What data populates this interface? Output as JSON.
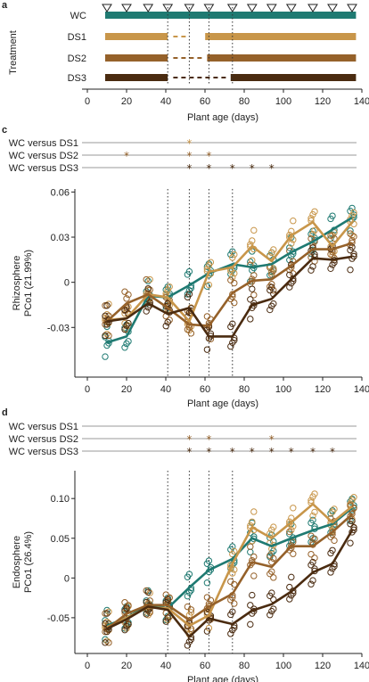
{
  "colors": {
    "WC": "#1f7a72",
    "DS1": "#c8964a",
    "DS2": "#95612a",
    "DS3": "#4a2b10",
    "grid": "#8a8a8a"
  },
  "panel_a": {
    "label": "a",
    "ylabel": "Treatment",
    "xlabel": "Plant age (days)",
    "xticks": [
      "0",
      "20",
      "40",
      "60",
      "80",
      "100",
      "120",
      "140"
    ],
    "rows": [
      {
        "name": "WC",
        "segments": [
          [
            10,
            137
          ]
        ]
      },
      {
        "name": "DS1",
        "segments": [
          [
            10,
            41
          ],
          [
            61,
            137
          ]
        ],
        "dashed": [
          [
            42,
            52
          ]
        ]
      },
      {
        "name": "DS2",
        "segments": [
          [
            10,
            41
          ],
          [
            62,
            137
          ]
        ],
        "dashed": [
          [
            42,
            61
          ]
        ]
      },
      {
        "name": "DS3",
        "segments": [
          [
            10,
            41
          ],
          [
            74,
            137
          ]
        ],
        "dashed": [
          [
            42,
            73
          ]
        ]
      }
    ],
    "triangle_days": [
      10,
      20,
      31,
      41,
      52,
      62,
      74,
      84,
      94,
      104,
      115,
      125,
      135
    ],
    "dotted_days": [
      41,
      52,
      62,
      74
    ]
  },
  "panel_c": {
    "label": "c",
    "sig_rows": [
      {
        "label": "WC versus DS1",
        "stars": [
          52
        ],
        "star_color": "DS1"
      },
      {
        "label": "WC versus DS2",
        "stars": [
          20,
          52,
          62
        ],
        "star_color": "DS2"
      },
      {
        "label": "WC versus DS3",
        "stars": [
          52,
          62,
          74,
          84,
          94
        ],
        "star_color": "DS3"
      }
    ],
    "star_glyph": "*"
  },
  "panel_d": {
    "label": "d",
    "sig_rows": [
      {
        "label": "WC versus DS1",
        "stars": [],
        "star_color": "DS1"
      },
      {
        "label": "WC versus DS2",
        "stars": [
          52,
          62,
          94
        ],
        "star_color": "DS2"
      },
      {
        "label": "WC versus DS3",
        "stars": [
          52,
          62,
          74,
          84,
          94,
          104,
          115,
          125
        ],
        "star_color": "DS3"
      }
    ],
    "star_glyph": "*"
  },
  "chart_data": [
    {
      "type": "line",
      "title": "",
      "xlabel": "Plant age (days)",
      "ylabel": "Rhizosphere PCo1 (21.99%)",
      "xlim": [
        -5,
        142
      ],
      "ylim": [
        -0.063,
        0.062
      ],
      "xticks": [
        "0",
        "20",
        "40",
        "60",
        "80",
        "100",
        "120",
        "140"
      ],
      "yticks": [
        "0.06",
        "0.03",
        "0",
        "-0.03"
      ],
      "ytick_values": [
        0.06,
        0.03,
        0,
        -0.03
      ],
      "dotted_x": [
        41,
        52,
        62,
        74
      ],
      "x": [
        10,
        20,
        31,
        41,
        52,
        62,
        74,
        84,
        94,
        104,
        115,
        125,
        135
      ],
      "series": [
        {
          "name": "WC",
          "values": [
            -0.04,
            -0.036,
            -0.009,
            -0.01,
            -0.002,
            0.006,
            0.012,
            0.01,
            0.012,
            0.02,
            0.027,
            0.035,
            0.043
          ]
        },
        {
          "name": "DS1",
          "values": [
            -0.025,
            -0.024,
            -0.008,
            -0.01,
            -0.026,
            0.007,
            0.01,
            0.024,
            0.014,
            0.031,
            0.04,
            0.024,
            0.04
          ]
        },
        {
          "name": "DS2",
          "values": [
            -0.026,
            -0.014,
            -0.008,
            -0.017,
            -0.028,
            -0.029,
            -0.007,
            0.001,
            0.002,
            0.011,
            0.022,
            0.022,
            0.026
          ]
        },
        {
          "name": "DS3",
          "values": [
            -0.026,
            -0.024,
            -0.014,
            -0.021,
            -0.017,
            -0.036,
            -0.036,
            -0.015,
            -0.011,
            0.002,
            0.016,
            0.015,
            0.017
          ]
        }
      ]
    },
    {
      "type": "line",
      "title": "",
      "xlabel": "Plant age (days)",
      "ylabel": "Endosphere PCo1 (26.4%)",
      "xlim": [
        -5,
        142
      ],
      "ylim": [
        -0.095,
        0.135
      ],
      "xticks": [
        "0",
        "20",
        "40",
        "60",
        "80",
        "100",
        "120",
        "140"
      ],
      "yticks": [
        "0.10",
        "0.05",
        "0",
        "-0.05"
      ],
      "ytick_values": [
        0.1,
        0.05,
        0,
        -0.05
      ],
      "dotted_x": [
        41,
        52,
        62,
        74
      ],
      "x": [
        10,
        20,
        31,
        41,
        52,
        62,
        74,
        84,
        94,
        104,
        115,
        125,
        135
      ],
      "series": [
        {
          "name": "WC",
          "values": [
            -0.06,
            -0.05,
            -0.034,
            -0.038,
            -0.012,
            0.01,
            0.024,
            0.05,
            0.04,
            0.05,
            0.06,
            0.068,
            0.088
          ]
        },
        {
          "name": "DS1",
          "values": [
            -0.062,
            -0.05,
            -0.037,
            -0.038,
            -0.06,
            -0.047,
            0.018,
            0.064,
            0.05,
            0.07,
            0.093,
            0.07,
            0.09
          ]
        },
        {
          "name": "DS2",
          "values": [
            -0.064,
            -0.045,
            -0.034,
            -0.034,
            -0.053,
            -0.036,
            -0.02,
            0.02,
            0.014,
            0.04,
            0.04,
            0.058,
            0.08
          ]
        },
        {
          "name": "DS3",
          "values": [
            -0.064,
            -0.052,
            -0.036,
            -0.04,
            -0.074,
            -0.051,
            -0.058,
            -0.041,
            -0.033,
            -0.017,
            0.007,
            0.018,
            0.06
          ]
        }
      ]
    }
  ]
}
